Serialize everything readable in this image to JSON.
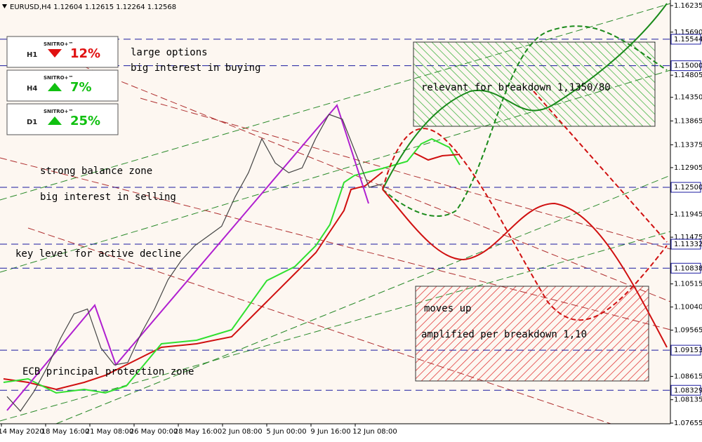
{
  "header": {
    "title": "EURUSD,H4  1.12604 1.12615 1.12264 1.12568"
  },
  "price_axis": {
    "ticks": [
      {
        "value": 1.16235,
        "label": "1.16235",
        "highlighted": false
      },
      {
        "value": 1.1569,
        "label": "1.15690",
        "highlighted": false
      },
      {
        "value": 1.15544,
        "label": "1.15544",
        "highlighted": true
      },
      {
        "value": 1.15,
        "label": "1.15000",
        "highlighted": true
      },
      {
        "value": 1.14805,
        "label": "1.14805",
        "highlighted": false
      },
      {
        "value": 1.1435,
        "label": "1.14350",
        "highlighted": false
      },
      {
        "value": 1.13865,
        "label": "1.13865",
        "highlighted": false
      },
      {
        "value": 1.13375,
        "label": "1.13375",
        "highlighted": false
      },
      {
        "value": 1.12905,
        "label": "1.12905",
        "highlighted": false
      },
      {
        "value": 1.125,
        "label": "1.12500",
        "highlighted": true
      },
      {
        "value": 1.11945,
        "label": "1.11945",
        "highlighted": false
      },
      {
        "value": 1.11475,
        "label": "1.11475",
        "highlighted": false
      },
      {
        "value": 1.11332,
        "label": "1.11332",
        "highlighted": true
      },
      {
        "value": 1.10838,
        "label": "1.10838",
        "highlighted": true
      },
      {
        "value": 1.10515,
        "label": "1.10515",
        "highlighted": false
      },
      {
        "value": 1.1004,
        "label": "1.10040",
        "highlighted": false
      },
      {
        "value": 1.09565,
        "label": "1.09565",
        "highlighted": false
      },
      {
        "value": 1.09153,
        "label": "1.09153",
        "highlighted": true
      },
      {
        "value": 1.08615,
        "label": "1.08615",
        "highlighted": false
      },
      {
        "value": 1.08329,
        "label": "1.08329",
        "highlighted": true
      },
      {
        "value": 1.08135,
        "label": "1.08135",
        "highlighted": false
      },
      {
        "value": 1.07655,
        "label": "1.07655",
        "highlighted": false
      }
    ]
  },
  "time_axis": {
    "labels": [
      "14 May 2020",
      "18 May 16:00",
      "21 May 08:00",
      "26 May 00:00",
      "28 May 16:00",
      "2 Jun 08:00",
      "5 Jun 00:00",
      "9 Jun 16:00",
      "12 Jun 08:00"
    ]
  },
  "price": [
    1.082,
    1.079,
    1.083,
    1.088,
    1.094,
    1.099,
    1.1,
    1.092,
    1.0885,
    1.089,
    1.095,
    1.1,
    1.106,
    1.11,
    1.113,
    1.115,
    1.117,
    1.123,
    1.128,
    1.135,
    1.13,
    1.128,
    1.129,
    1.135,
    1.14,
    1.139,
    1.132,
    1.125,
    1.1257
  ],
  "indicators": [
    {
      "timeframe": "H1",
      "brand": "SNITRO+™",
      "direction": "down",
      "percent": "12%",
      "color": "#e01010"
    },
    {
      "timeframe": "H4",
      "brand": "SNITRO+™",
      "direction": "up",
      "percent": "7%",
      "color": "#10c010"
    },
    {
      "timeframe": "D1",
      "brand": "SNITRO+™",
      "direction": "up",
      "percent": "25%",
      "color": "#10c010"
    }
  ],
  "annotations": [
    "large options",
    "big interest in buying",
    "relevant for breakdown 1,1350/80",
    "strong balance zone",
    "big interest in selling",
    "key level for active decline",
    "moves up",
    "amplified per breakdown 1,10",
    "ECB principal protection zone"
  ]
}
